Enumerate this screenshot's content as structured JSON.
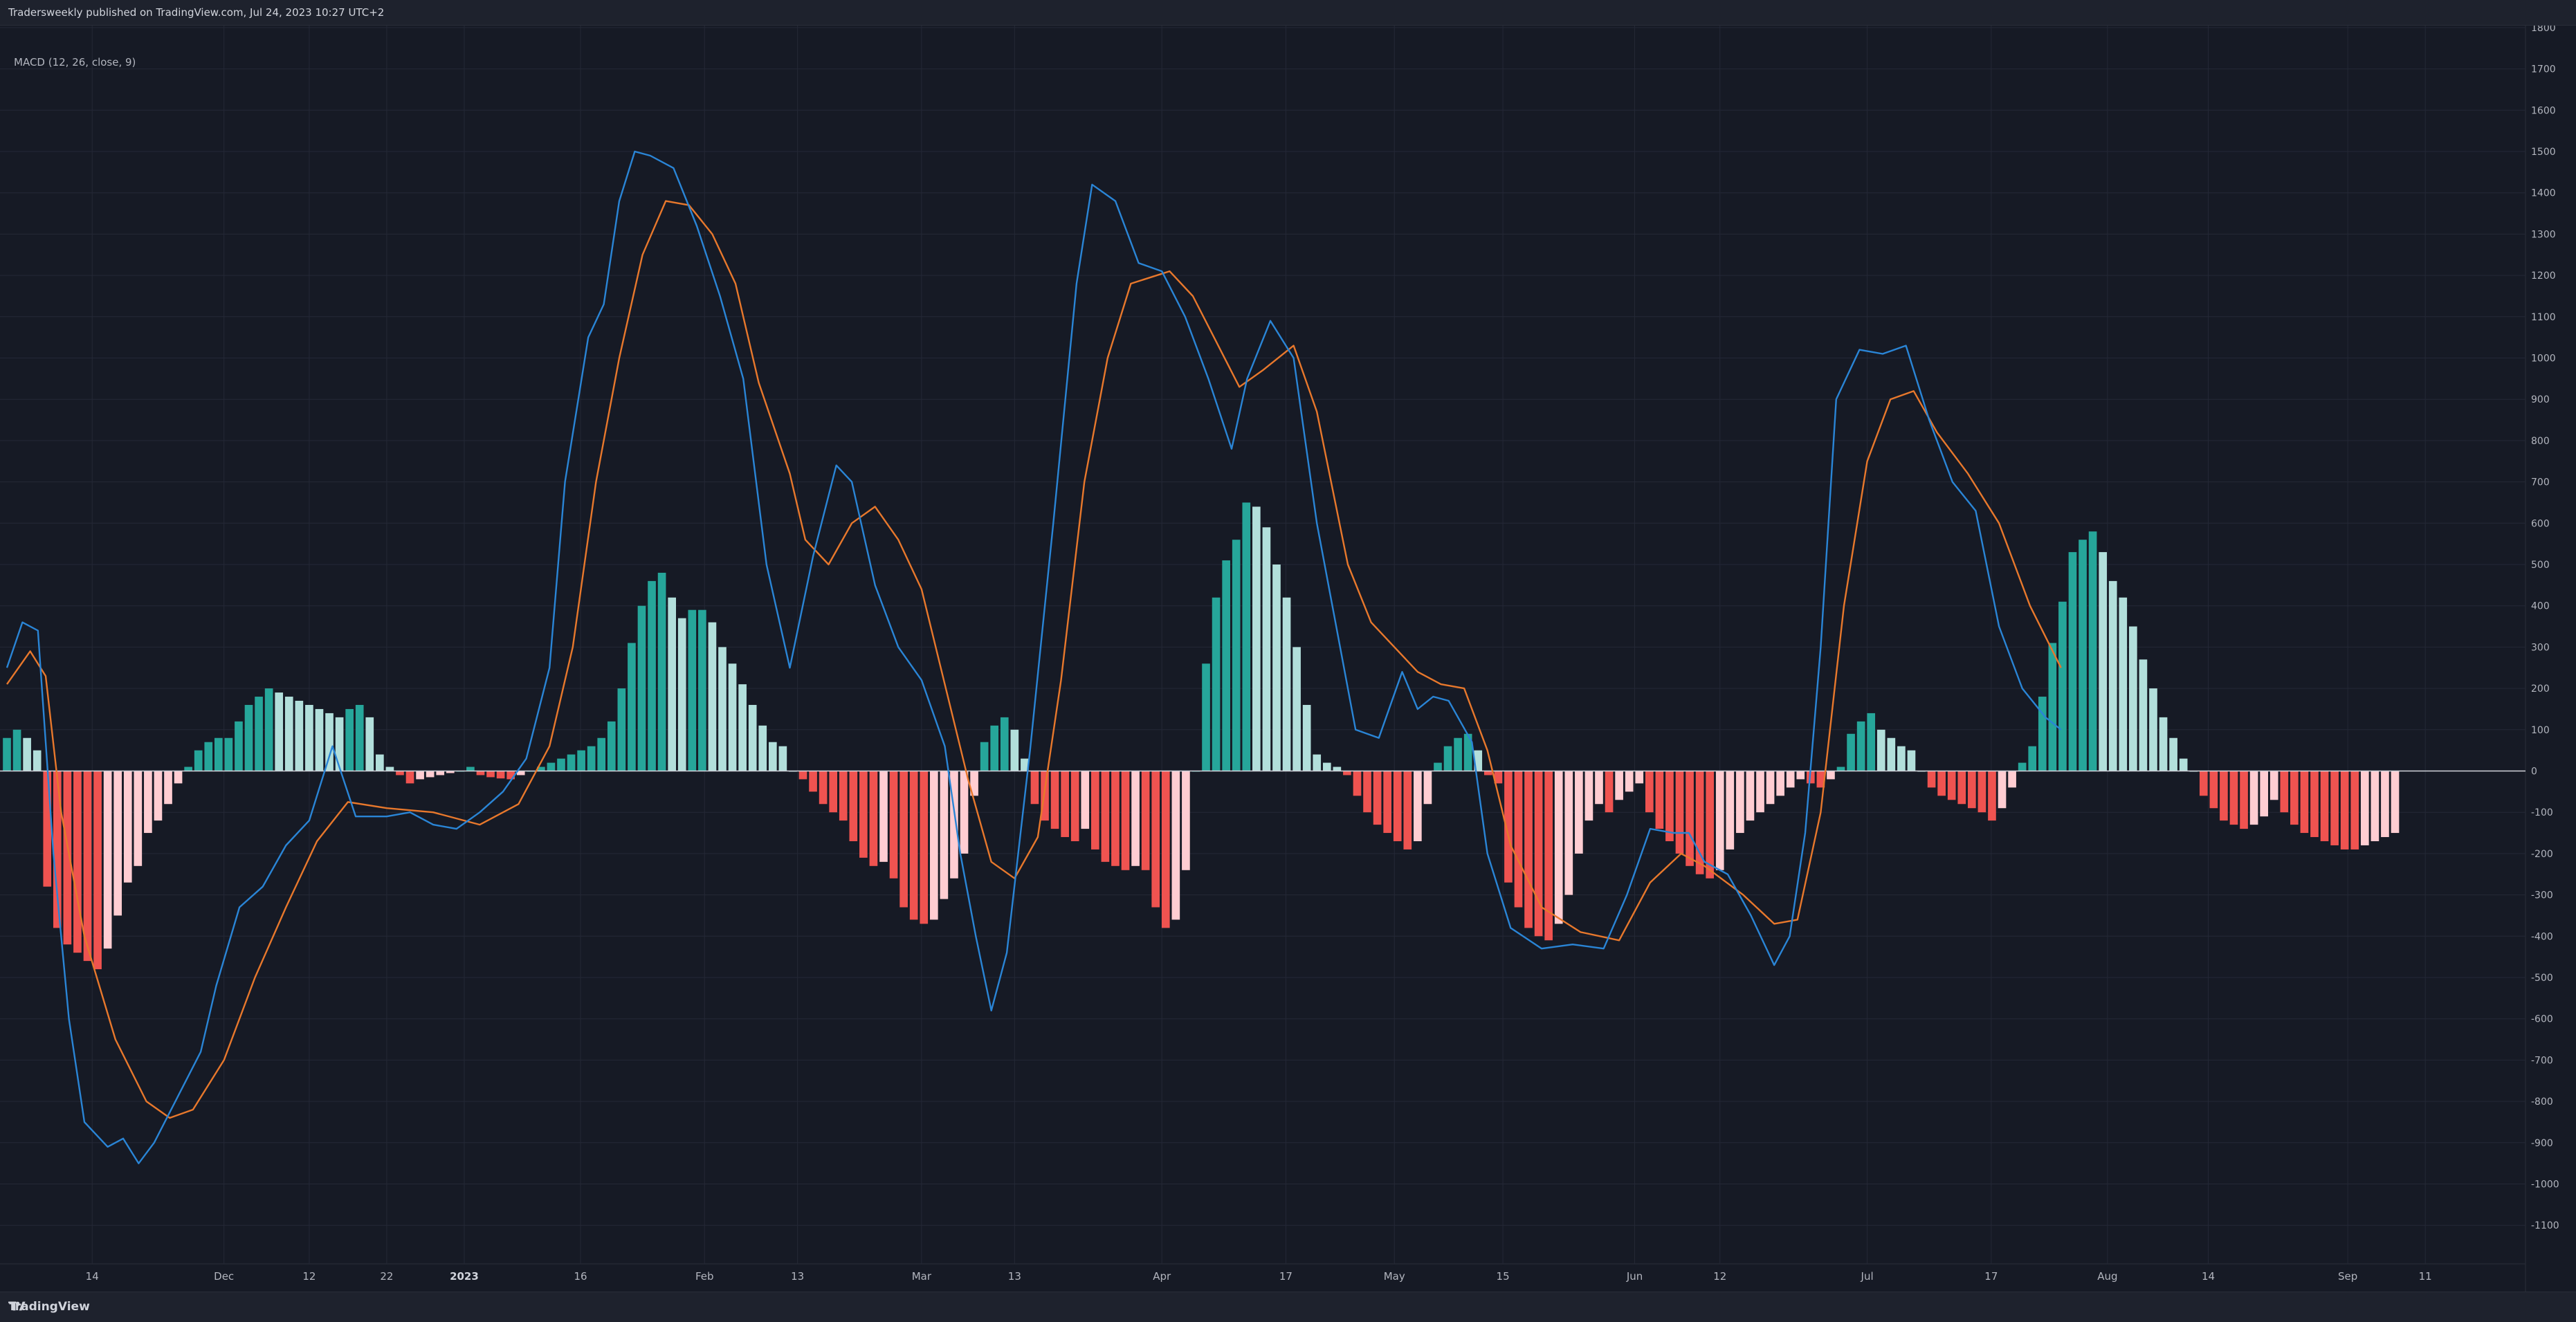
{
  "header": {
    "text": "Tradersweekly published on TradingView.com, Jul 24, 2023 10:27 UTC+2"
  },
  "indicator": {
    "label": "MACD (12, 26, close, 9)"
  },
  "footer": {
    "brand": "TradingView"
  },
  "colors": {
    "background": "#161a25",
    "grid": "#242836",
    "macd_line": "#2a85d6",
    "signal_line": "#e8782c",
    "hist_pos_strong": "#26a69a",
    "hist_pos_weak": "#b2dfdb",
    "hist_neg_strong": "#ef5350",
    "hist_neg_weak": "#ffcdd2"
  },
  "chart_data": {
    "type": "line",
    "title": "MACD (12, 26, close, 9)",
    "ylim": [
      -1100,
      1800
    ],
    "y_ticks": [
      1800,
      1700,
      1600,
      1500,
      1400,
      1300,
      1200,
      1100,
      1000,
      900,
      800,
      700,
      600,
      500,
      400,
      300,
      200,
      100,
      0,
      -100,
      -200,
      -300,
      -400,
      -500,
      -600,
      -700,
      -800,
      -900,
      -1000,
      -1100
    ],
    "x_range": [
      "2022-11-03",
      "2023-09-15"
    ],
    "x_ticks": [
      {
        "label": "14",
        "date": "2022-11-14"
      },
      {
        "label": "Dec",
        "date": "2022-12-01"
      },
      {
        "label": "12",
        "date": "2022-12-12"
      },
      {
        "label": "22",
        "date": "2022-12-22"
      },
      {
        "label": "2023",
        "date": "2023-01-01",
        "bold": true
      },
      {
        "label": "16",
        "date": "2023-01-16"
      },
      {
        "label": "Feb",
        "date": "2023-02-01"
      },
      {
        "label": "13",
        "date": "2023-02-13"
      },
      {
        "label": "Mar",
        "date": "2023-03-01"
      },
      {
        "label": "13",
        "date": "2023-03-13"
      },
      {
        "label": "Apr",
        "date": "2023-04-01"
      },
      {
        "label": "17",
        "date": "2023-04-17"
      },
      {
        "label": "May",
        "date": "2023-05-01"
      },
      {
        "label": "15",
        "date": "2023-05-15"
      },
      {
        "label": "Jun",
        "date": "2023-06-01"
      },
      {
        "label": "12",
        "date": "2023-06-12"
      },
      {
        "label": "Jul",
        "date": "2023-07-01"
      },
      {
        "label": "17",
        "date": "2023-07-17"
      },
      {
        "label": "Aug",
        "date": "2023-08-01"
      },
      {
        "label": "14",
        "date": "2023-08-14"
      },
      {
        "label": "Sep",
        "date": "2023-09-01"
      },
      {
        "label": "11",
        "date": "2023-09-11"
      }
    ],
    "grid": true,
    "series": [
      {
        "name": "MACD",
        "points": [
          [
            "2022-11-03",
            250
          ],
          [
            "2022-11-05",
            360
          ],
          [
            "2022-11-07",
            340
          ],
          [
            "2022-11-09",
            -200
          ],
          [
            "2022-11-11",
            -600
          ],
          [
            "2022-11-13",
            -850
          ],
          [
            "2022-11-16",
            -910
          ],
          [
            "2022-11-18",
            -890
          ],
          [
            "2022-11-20",
            -950
          ],
          [
            "2022-11-22",
            -900
          ],
          [
            "2022-11-25",
            -790
          ],
          [
            "2022-11-28",
            -680
          ],
          [
            "2022-11-30",
            -520
          ],
          [
            "2022-12-03",
            -330
          ],
          [
            "2022-12-06",
            -280
          ],
          [
            "2022-12-09",
            -180
          ],
          [
            "2022-12-12",
            -120
          ],
          [
            "2022-12-15",
            60
          ],
          [
            "2022-12-18",
            -110
          ],
          [
            "2022-12-22",
            -110
          ],
          [
            "2022-12-25",
            -100
          ],
          [
            "2022-12-28",
            -130
          ],
          [
            "2022-12-31",
            -140
          ],
          [
            "2023-01-03",
            -100
          ],
          [
            "2023-01-06",
            -50
          ],
          [
            "2023-01-09",
            30
          ],
          [
            "2023-01-12",
            250
          ],
          [
            "2023-01-14",
            700
          ],
          [
            "2023-01-17",
            1050
          ],
          [
            "2023-01-19",
            1130
          ],
          [
            "2023-01-21",
            1380
          ],
          [
            "2023-01-23",
            1500
          ],
          [
            "2023-01-25",
            1490
          ],
          [
            "2023-01-28",
            1460
          ],
          [
            "2023-01-31",
            1320
          ],
          [
            "2023-02-03",
            1150
          ],
          [
            "2023-02-06",
            950
          ],
          [
            "2023-02-09",
            500
          ],
          [
            "2023-02-12",
            250
          ],
          [
            "2023-02-15",
            520
          ],
          [
            "2023-02-18",
            740
          ],
          [
            "2023-02-20",
            700
          ],
          [
            "2023-02-23",
            450
          ],
          [
            "2023-02-26",
            300
          ],
          [
            "2023-03-01",
            220
          ],
          [
            "2023-03-04",
            60
          ],
          [
            "2023-03-06",
            -200
          ],
          [
            "2023-03-08",
            -400
          ],
          [
            "2023-03-10",
            -580
          ],
          [
            "2023-03-12",
            -440
          ],
          [
            "2023-03-15",
            50
          ],
          [
            "2023-03-18",
            600
          ],
          [
            "2023-03-21",
            1180
          ],
          [
            "2023-03-23",
            1420
          ],
          [
            "2023-03-26",
            1380
          ],
          [
            "2023-03-29",
            1230
          ],
          [
            "2023-04-01",
            1210
          ],
          [
            "2023-04-04",
            1100
          ],
          [
            "2023-04-07",
            950
          ],
          [
            "2023-04-10",
            780
          ],
          [
            "2023-04-12",
            950
          ],
          [
            "2023-04-15",
            1090
          ],
          [
            "2023-04-18",
            1000
          ],
          [
            "2023-04-21",
            600
          ],
          [
            "2023-04-24",
            300
          ],
          [
            "2023-04-26",
            100
          ],
          [
            "2023-04-29",
            80
          ],
          [
            "2023-05-02",
            240
          ],
          [
            "2023-05-04",
            150
          ],
          [
            "2023-05-06",
            180
          ],
          [
            "2023-05-08",
            170
          ],
          [
            "2023-05-11",
            70
          ],
          [
            "2023-05-13",
            -200
          ],
          [
            "2023-05-16",
            -380
          ],
          [
            "2023-05-20",
            -430
          ],
          [
            "2023-05-24",
            -420
          ],
          [
            "2023-05-28",
            -430
          ],
          [
            "2023-05-31",
            -300
          ],
          [
            "2023-06-03",
            -140
          ],
          [
            "2023-06-06",
            -150
          ],
          [
            "2023-06-08",
            -150
          ],
          [
            "2023-06-10",
            -220
          ],
          [
            "2023-06-13",
            -250
          ],
          [
            "2023-06-16",
            -350
          ],
          [
            "2023-06-19",
            -470
          ],
          [
            "2023-06-21",
            -400
          ],
          [
            "2023-06-23",
            -150
          ],
          [
            "2023-06-25",
            300
          ],
          [
            "2023-06-27",
            900
          ],
          [
            "2023-06-30",
            1020
          ],
          [
            "2023-07-03",
            1010
          ],
          [
            "2023-07-06",
            1030
          ],
          [
            "2023-07-09",
            850
          ],
          [
            "2023-07-12",
            700
          ],
          [
            "2023-07-15",
            630
          ],
          [
            "2023-07-18",
            350
          ],
          [
            "2023-07-21",
            200
          ],
          [
            "2023-07-24",
            130
          ],
          [
            "2023-07-26",
            100
          ]
        ]
      },
      {
        "name": "Signal",
        "points": [
          [
            "2022-11-03",
            210
          ],
          [
            "2022-11-06",
            290
          ],
          [
            "2022-11-08",
            230
          ],
          [
            "2022-11-10",
            -100
          ],
          [
            "2022-11-13",
            -400
          ],
          [
            "2022-11-17",
            -650
          ],
          [
            "2022-11-21",
            -800
          ],
          [
            "2022-11-24",
            -840
          ],
          [
            "2022-11-27",
            -820
          ],
          [
            "2022-12-01",
            -700
          ],
          [
            "2022-12-05",
            -500
          ],
          [
            "2022-12-09",
            -330
          ],
          [
            "2022-12-13",
            -170
          ],
          [
            "2022-12-17",
            -75
          ],
          [
            "2022-12-22",
            -90
          ],
          [
            "2022-12-28",
            -100
          ],
          [
            "2023-01-03",
            -130
          ],
          [
            "2023-01-08",
            -80
          ],
          [
            "2023-01-12",
            60
          ],
          [
            "2023-01-15",
            300
          ],
          [
            "2023-01-18",
            700
          ],
          [
            "2023-01-21",
            1000
          ],
          [
            "2023-01-24",
            1250
          ],
          [
            "2023-01-27",
            1380
          ],
          [
            "2023-01-30",
            1370
          ],
          [
            "2023-02-02",
            1300
          ],
          [
            "2023-02-05",
            1180
          ],
          [
            "2023-02-08",
            940
          ],
          [
            "2023-02-12",
            720
          ],
          [
            "2023-02-14",
            560
          ],
          [
            "2023-02-17",
            500
          ],
          [
            "2023-02-20",
            600
          ],
          [
            "2023-02-23",
            640
          ],
          [
            "2023-02-26",
            560
          ],
          [
            "2023-03-01",
            440
          ],
          [
            "2023-03-04",
            210
          ],
          [
            "2023-03-07",
            -20
          ],
          [
            "2023-03-10",
            -220
          ],
          [
            "2023-03-13",
            -260
          ],
          [
            "2023-03-16",
            -160
          ],
          [
            "2023-03-19",
            220
          ],
          [
            "2023-03-22",
            700
          ],
          [
            "2023-03-25",
            1000
          ],
          [
            "2023-03-28",
            1180
          ],
          [
            "2023-04-02",
            1210
          ],
          [
            "2023-04-05",
            1150
          ],
          [
            "2023-04-08",
            1040
          ],
          [
            "2023-04-11",
            930
          ],
          [
            "2023-04-14",
            970
          ],
          [
            "2023-04-18",
            1030
          ],
          [
            "2023-04-21",
            870
          ],
          [
            "2023-04-25",
            500
          ],
          [
            "2023-04-28",
            360
          ],
          [
            "2023-05-01",
            300
          ],
          [
            "2023-05-04",
            240
          ],
          [
            "2023-05-07",
            210
          ],
          [
            "2023-05-10",
            200
          ],
          [
            "2023-05-13",
            50
          ],
          [
            "2023-05-16",
            -180
          ],
          [
            "2023-05-20",
            -330
          ],
          [
            "2023-05-25",
            -390
          ],
          [
            "2023-05-30",
            -410
          ],
          [
            "2023-06-03",
            -270
          ],
          [
            "2023-06-07",
            -200
          ],
          [
            "2023-06-10",
            -230
          ],
          [
            "2023-06-15",
            -300
          ],
          [
            "2023-06-19",
            -370
          ],
          [
            "2023-06-22",
            -360
          ],
          [
            "2023-06-25",
            -100
          ],
          [
            "2023-06-28",
            400
          ],
          [
            "2023-07-01",
            750
          ],
          [
            "2023-07-04",
            900
          ],
          [
            "2023-07-07",
            920
          ],
          [
            "2023-07-10",
            820
          ],
          [
            "2023-07-14",
            720
          ],
          [
            "2023-07-18",
            600
          ],
          [
            "2023-07-22",
            400
          ],
          [
            "2023-07-26",
            250
          ]
        ]
      },
      {
        "name": "Histogram",
        "type": "bar",
        "start_date": "2022-11-03",
        "step_days": 1.3,
        "values": [
          80,
          100,
          80,
          50,
          -280,
          -380,
          -420,
          -440,
          -460,
          -480,
          -430,
          -350,
          -270,
          -230,
          -150,
          -120,
          -80,
          -30,
          10,
          50,
          70,
          80,
          80,
          120,
          160,
          180,
          200,
          190,
          180,
          170,
          160,
          150,
          140,
          130,
          150,
          160,
          130,
          40,
          10,
          -10,
          -30,
          -20,
          -15,
          -10,
          -5,
          0,
          10,
          -10,
          -15,
          -18,
          -20,
          -10,
          0,
          10,
          20,
          30,
          40,
          50,
          60,
          80,
          120,
          200,
          310,
          400,
          460,
          480,
          420,
          370,
          390,
          390,
          360,
          300,
          260,
          210,
          160,
          110,
          70,
          60,
          0,
          -20,
          -50,
          -80,
          -100,
          -120,
          -170,
          -210,
          -230,
          -220,
          -260,
          -330,
          -360,
          -370,
          -360,
          -310,
          -260,
          -200,
          -60,
          70,
          110,
          130,
          100,
          30,
          -80,
          -120,
          -140,
          -160,
          -170,
          -140,
          -190,
          -220,
          -230,
          -240,
          -230,
          -240,
          -330,
          -380,
          -360,
          -240,
          0,
          260,
          420,
          510,
          560,
          650,
          640,
          590,
          500,
          420,
          300,
          160,
          40,
          20,
          10,
          -10,
          -60,
          -100,
          -130,
          -150,
          -170,
          -190,
          -170,
          -80,
          20,
          60,
          80,
          90,
          50,
          -10,
          -30,
          -270,
          -330,
          -380,
          -400,
          -410,
          -370,
          -300,
          -200,
          -120,
          -80,
          -100,
          -70,
          -50,
          -30,
          -100,
          -140,
          -170,
          -200,
          -230,
          -250,
          -260,
          -240,
          -190,
          -150,
          -120,
          -100,
          -80,
          -60,
          -40,
          -20,
          -30,
          -40,
          -20,
          10,
          90,
          120,
          140,
          100,
          80,
          60,
          50,
          0,
          -40,
          -60,
          -70,
          -80,
          -90,
          -100,
          -120,
          -90,
          -40,
          20,
          60,
          180,
          310,
          410,
          530,
          560,
          580,
          530,
          460,
          420,
          350,
          270,
          200,
          130,
          80,
          30,
          0,
          -60,
          -90,
          -120,
          -130,
          -140,
          -130,
          -110,
          -70,
          -100,
          -130,
          -150,
          -160,
          -170,
          -180,
          -190,
          -190,
          -180,
          -170,
          -160,
          -150
        ]
      }
    ]
  }
}
